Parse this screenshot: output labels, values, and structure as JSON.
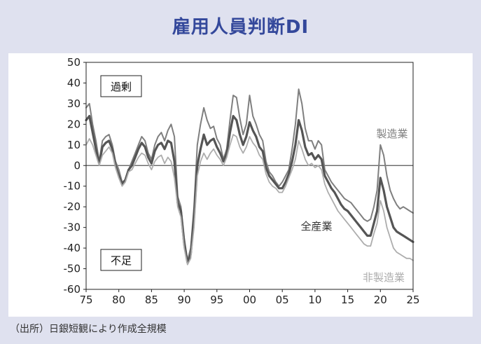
{
  "title": "雇用人員判断DI",
  "source": "（出所）日銀短観により作成全規模",
  "chart_data": {
    "type": "line",
    "title": "雇用人員判断DI",
    "xlabel": "",
    "ylabel": "",
    "xlim": [
      1975,
      2025
    ],
    "ylim": [
      -60,
      50
    ],
    "x_ticks": [
      1975,
      1980,
      1985,
      1990,
      1995,
      2000,
      2005,
      2010,
      2015,
      2020,
      2025
    ],
    "x_tick_labels": [
      "75",
      "80",
      "85",
      "90",
      "95",
      "00",
      "05",
      "10",
      "15",
      "20",
      "25"
    ],
    "y_ticks": [
      -60,
      -50,
      -40,
      -30,
      -20,
      -10,
      0,
      10,
      20,
      30,
      40,
      50
    ],
    "y_tick_labels": [
      "-60",
      "-50",
      "-40",
      "-30",
      "-20",
      "-10",
      "0",
      "10",
      "20",
      "30",
      "40",
      "50"
    ],
    "grid": false,
    "zero_line": true,
    "annotations": {
      "upper": "過剰",
      "lower": "不足"
    },
    "series": [
      {
        "name": "製造業",
        "color": "#7f7f7f",
        "width": 2,
        "points": [
          [
            1975,
            28
          ],
          [
            1975.5,
            30
          ],
          [
            1976,
            20
          ],
          [
            1976.5,
            12
          ],
          [
            1977,
            2
          ],
          [
            1977.5,
            12
          ],
          [
            1978,
            14
          ],
          [
            1978.5,
            15
          ],
          [
            1979,
            10
          ],
          [
            1979.5,
            2
          ],
          [
            1980,
            -2
          ],
          [
            1980.5,
            -8
          ],
          [
            1981,
            -7
          ],
          [
            1981.5,
            -2
          ],
          [
            1982,
            2
          ],
          [
            1982.5,
            6
          ],
          [
            1983,
            10
          ],
          [
            1983.5,
            14
          ],
          [
            1984,
            12
          ],
          [
            1984.5,
            6
          ],
          [
            1985,
            3
          ],
          [
            1985.5,
            10
          ],
          [
            1986,
            14
          ],
          [
            1986.5,
            16
          ],
          [
            1987,
            12
          ],
          [
            1987.5,
            17
          ],
          [
            1988,
            20
          ],
          [
            1988.5,
            14
          ],
          [
            1989,
            -15
          ],
          [
            1989.5,
            -20
          ],
          [
            1990,
            -35
          ],
          [
            1990.5,
            -46
          ],
          [
            1991,
            -40
          ],
          [
            1991.5,
            -20
          ],
          [
            1992,
            10
          ],
          [
            1992.5,
            20
          ],
          [
            1993,
            28
          ],
          [
            1993.5,
            22
          ],
          [
            1994,
            18
          ],
          [
            1994.5,
            19
          ],
          [
            1995,
            13
          ],
          [
            1995.5,
            10
          ],
          [
            1996,
            3
          ],
          [
            1996.5,
            8
          ],
          [
            1997,
            22
          ],
          [
            1997.5,
            34
          ],
          [
            1998,
            33
          ],
          [
            1998.5,
            23
          ],
          [
            1999,
            15
          ],
          [
            1999.5,
            20
          ],
          [
            2000,
            34
          ],
          [
            2000.5,
            24
          ],
          [
            2001,
            20
          ],
          [
            2001.5,
            15
          ],
          [
            2002,
            12
          ],
          [
            2002.5,
            2
          ],
          [
            2003,
            -3
          ],
          [
            2003.5,
            -5
          ],
          [
            2004,
            -8
          ],
          [
            2004.5,
            -10
          ],
          [
            2005,
            -8
          ],
          [
            2005.5,
            -5
          ],
          [
            2006,
            -2
          ],
          [
            2006.5,
            8
          ],
          [
            2007,
            20
          ],
          [
            2007.5,
            37
          ],
          [
            2008,
            30
          ],
          [
            2008.5,
            18
          ],
          [
            2009,
            12
          ],
          [
            2009.5,
            12
          ],
          [
            2010,
            8
          ],
          [
            2010.5,
            12
          ],
          [
            2011,
            10
          ],
          [
            2011.5,
            -2
          ],
          [
            2012,
            -5
          ],
          [
            2012.5,
            -8
          ],
          [
            2013,
            -10
          ],
          [
            2013.5,
            -12
          ],
          [
            2014,
            -14
          ],
          [
            2014.5,
            -16
          ],
          [
            2015,
            -17
          ],
          [
            2015.5,
            -18
          ],
          [
            2016,
            -20
          ],
          [
            2016.5,
            -22
          ],
          [
            2017,
            -24
          ],
          [
            2017.5,
            -26
          ],
          [
            2018,
            -27
          ],
          [
            2018.5,
            -26
          ],
          [
            2019,
            -20
          ],
          [
            2019.5,
            -12
          ],
          [
            2020,
            10
          ],
          [
            2020.5,
            5
          ],
          [
            2021,
            -5
          ],
          [
            2021.5,
            -12
          ],
          [
            2022,
            -16
          ],
          [
            2022.5,
            -19
          ],
          [
            2023,
            -21
          ],
          [
            2023.5,
            -20
          ],
          [
            2024,
            -21
          ],
          [
            2024.5,
            -22
          ],
          [
            2025,
            -23
          ]
        ]
      },
      {
        "name": "全産業",
        "color": "#555555",
        "width": 3.2,
        "points": [
          [
            1975,
            22
          ],
          [
            1975.5,
            24
          ],
          [
            1976,
            16
          ],
          [
            1976.5,
            8
          ],
          [
            1977,
            1
          ],
          [
            1977.5,
            9
          ],
          [
            1978,
            11
          ],
          [
            1978.5,
            12
          ],
          [
            1979,
            8
          ],
          [
            1979.5,
            0
          ],
          [
            1980,
            -5
          ],
          [
            1980.5,
            -9
          ],
          [
            1981,
            -7
          ],
          [
            1981.5,
            -2
          ],
          [
            1982,
            0
          ],
          [
            1982.5,
            4
          ],
          [
            1983,
            8
          ],
          [
            1983.5,
            11
          ],
          [
            1984,
            9
          ],
          [
            1984.5,
            4
          ],
          [
            1985,
            1
          ],
          [
            1985.5,
            7
          ],
          [
            1986,
            10
          ],
          [
            1986.5,
            11
          ],
          [
            1987,
            8
          ],
          [
            1987.5,
            12
          ],
          [
            1988,
            11
          ],
          [
            1988.5,
            2
          ],
          [
            1989,
            -18
          ],
          [
            1989.5,
            -22
          ],
          [
            1990,
            -38
          ],
          [
            1990.5,
            -47
          ],
          [
            1991,
            -43
          ],
          [
            1991.5,
            -25
          ],
          [
            1992,
            0
          ],
          [
            1992.5,
            8
          ],
          [
            1993,
            15
          ],
          [
            1993.5,
            10
          ],
          [
            1994,
            12
          ],
          [
            1994.5,
            13
          ],
          [
            1995,
            9
          ],
          [
            1995.5,
            6
          ],
          [
            1996,
            2
          ],
          [
            1996.5,
            6
          ],
          [
            1997,
            16
          ],
          [
            1997.5,
            24
          ],
          [
            1998,
            22
          ],
          [
            1998.5,
            15
          ],
          [
            1999,
            10
          ],
          [
            1999.5,
            14
          ],
          [
            2000,
            21
          ],
          [
            2000.5,
            17
          ],
          [
            2001,
            14
          ],
          [
            2001.5,
            9
          ],
          [
            2002,
            7
          ],
          [
            2002.5,
            -1
          ],
          [
            2003,
            -5
          ],
          [
            2003.5,
            -7
          ],
          [
            2004,
            -9
          ],
          [
            2004.5,
            -11
          ],
          [
            2005,
            -11
          ],
          [
            2005.5,
            -8
          ],
          [
            2006,
            -4
          ],
          [
            2006.5,
            2
          ],
          [
            2007,
            10
          ],
          [
            2007.5,
            22
          ],
          [
            2008,
            17
          ],
          [
            2008.5,
            9
          ],
          [
            2009,
            5
          ],
          [
            2009.5,
            6
          ],
          [
            2010,
            3
          ],
          [
            2010.5,
            5
          ],
          [
            2011,
            3
          ],
          [
            2011.5,
            -5
          ],
          [
            2012,
            -8
          ],
          [
            2012.5,
            -11
          ],
          [
            2013,
            -13
          ],
          [
            2013.5,
            -16
          ],
          [
            2014,
            -19
          ],
          [
            2014.5,
            -21
          ],
          [
            2015,
            -22
          ],
          [
            2015.5,
            -24
          ],
          [
            2016,
            -26
          ],
          [
            2016.5,
            -28
          ],
          [
            2017,
            -30
          ],
          [
            2017.5,
            -32
          ],
          [
            2018,
            -34
          ],
          [
            2018.5,
            -34
          ],
          [
            2019,
            -28
          ],
          [
            2019.5,
            -22
          ],
          [
            2020,
            -6
          ],
          [
            2020.5,
            -12
          ],
          [
            2021,
            -20
          ],
          [
            2021.5,
            -25
          ],
          [
            2022,
            -30
          ],
          [
            2022.5,
            -32
          ],
          [
            2023,
            -33
          ],
          [
            2023.5,
            -34
          ],
          [
            2024,
            -35
          ],
          [
            2024.5,
            -36
          ],
          [
            2025,
            -37
          ]
        ]
      },
      {
        "name": "非製造業",
        "color": "#adadad",
        "width": 1.8,
        "points": [
          [
            1975,
            10
          ],
          [
            1975.5,
            13
          ],
          [
            1976,
            10
          ],
          [
            1976.5,
            5
          ],
          [
            1977,
            0
          ],
          [
            1977.5,
            5
          ],
          [
            1978,
            7
          ],
          [
            1978.5,
            9
          ],
          [
            1979,
            6
          ],
          [
            1979.5,
            -1
          ],
          [
            1980,
            -6
          ],
          [
            1980.5,
            -10
          ],
          [
            1981,
            -8
          ],
          [
            1981.5,
            -3
          ],
          [
            1982,
            -2
          ],
          [
            1982.5,
            1
          ],
          [
            1983,
            4
          ],
          [
            1983.5,
            6
          ],
          [
            1984,
            5
          ],
          [
            1984.5,
            1
          ],
          [
            1985,
            -2
          ],
          [
            1985.5,
            2
          ],
          [
            1986,
            4
          ],
          [
            1986.5,
            5
          ],
          [
            1987,
            1
          ],
          [
            1987.5,
            4
          ],
          [
            1988,
            2
          ],
          [
            1988.5,
            -6
          ],
          [
            1989,
            -20
          ],
          [
            1989.5,
            -25
          ],
          [
            1990,
            -40
          ],
          [
            1990.5,
            -48
          ],
          [
            1991,
            -45
          ],
          [
            1991.5,
            -30
          ],
          [
            1992,
            -5
          ],
          [
            1992.5,
            2
          ],
          [
            1993,
            6
          ],
          [
            1993.5,
            3
          ],
          [
            1994,
            6
          ],
          [
            1994.5,
            8
          ],
          [
            1995,
            5
          ],
          [
            1995.5,
            3
          ],
          [
            1996,
            0
          ],
          [
            1996.5,
            4
          ],
          [
            1997,
            10
          ],
          [
            1997.5,
            15
          ],
          [
            1998,
            14
          ],
          [
            1998.5,
            9
          ],
          [
            1999,
            6
          ],
          [
            1999.5,
            9
          ],
          [
            2000,
            14
          ],
          [
            2000.5,
            11
          ],
          [
            2001,
            9
          ],
          [
            2001.5,
            5
          ],
          [
            2002,
            3
          ],
          [
            2002.5,
            -4
          ],
          [
            2003,
            -8
          ],
          [
            2003.5,
            -10
          ],
          [
            2004,
            -11
          ],
          [
            2004.5,
            -13
          ],
          [
            2005,
            -13
          ],
          [
            2005.5,
            -10
          ],
          [
            2006,
            -6
          ],
          [
            2006.5,
            -2
          ],
          [
            2007,
            3
          ],
          [
            2007.5,
            12
          ],
          [
            2008,
            8
          ],
          [
            2008.5,
            3
          ],
          [
            2009,
            0
          ],
          [
            2009.5,
            1
          ],
          [
            2010,
            -1
          ],
          [
            2010.5,
            0
          ],
          [
            2011,
            -2
          ],
          [
            2011.5,
            -9
          ],
          [
            2012,
            -13
          ],
          [
            2012.5,
            -16
          ],
          [
            2013,
            -19
          ],
          [
            2013.5,
            -22
          ],
          [
            2014,
            -24
          ],
          [
            2014.5,
            -26
          ],
          [
            2015,
            -28
          ],
          [
            2015.5,
            -30
          ],
          [
            2016,
            -32
          ],
          [
            2016.5,
            -34
          ],
          [
            2017,
            -36
          ],
          [
            2017.5,
            -38
          ],
          [
            2018,
            -39
          ],
          [
            2018.5,
            -39
          ],
          [
            2019,
            -33
          ],
          [
            2019.5,
            -28
          ],
          [
            2020,
            -17
          ],
          [
            2020.5,
            -22
          ],
          [
            2021,
            -30
          ],
          [
            2021.5,
            -35
          ],
          [
            2022,
            -40
          ],
          [
            2022.5,
            -42
          ],
          [
            2023,
            -43
          ],
          [
            2023.5,
            -44
          ],
          [
            2024,
            -45
          ],
          [
            2024.5,
            -45
          ],
          [
            2025,
            -46
          ]
        ]
      }
    ]
  }
}
